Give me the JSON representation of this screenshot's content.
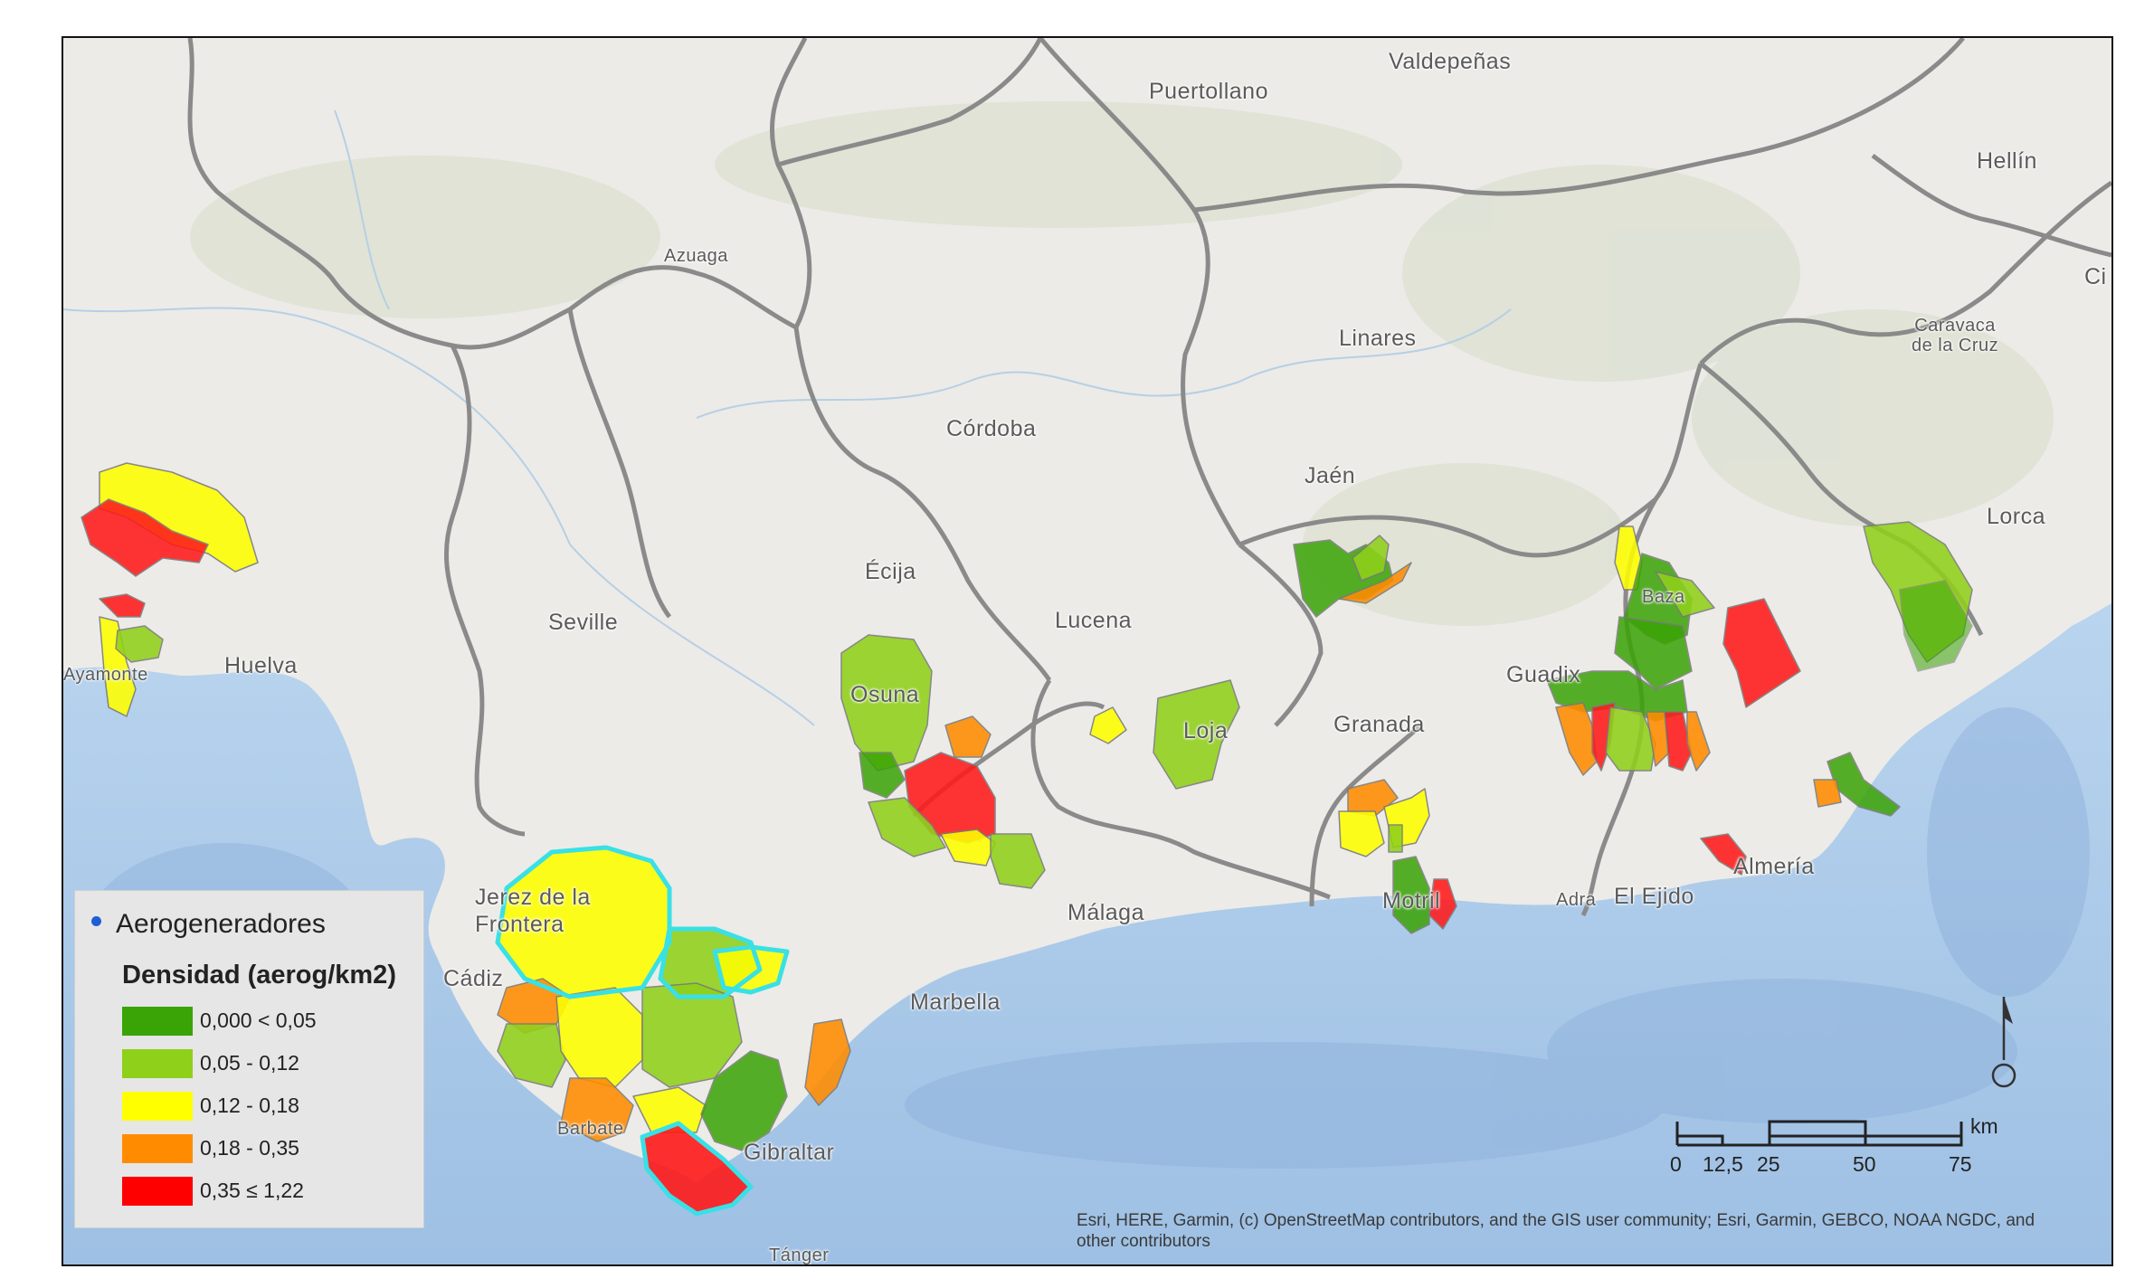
{
  "places": [
    {
      "name": "Valdepeñas",
      "cls": "city"
    },
    {
      "name": "Puertollano",
      "cls": "city"
    },
    {
      "name": "Hellín",
      "cls": "city"
    },
    {
      "name": "Azuaga",
      "cls": "small"
    },
    {
      "name": "Linares",
      "cls": "city"
    },
    {
      "name": "Caravaca\nde la Cruz",
      "cls": "small"
    },
    {
      "name": "Córdoba",
      "cls": "city"
    },
    {
      "name": "Jaén",
      "cls": "city"
    },
    {
      "name": "Lorca",
      "cls": "city"
    },
    {
      "name": "Écija",
      "cls": "city"
    },
    {
      "name": "Seville",
      "cls": "city"
    },
    {
      "name": "Lucena",
      "cls": "city"
    },
    {
      "name": "Huelva",
      "cls": "city"
    },
    {
      "name": "Ayamonte",
      "cls": "small"
    },
    {
      "name": "Baza",
      "cls": "small"
    },
    {
      "name": "Guadix",
      "cls": "city"
    },
    {
      "name": "Osuna",
      "cls": "city"
    },
    {
      "name": "Loja",
      "cls": "city"
    },
    {
      "name": "Granada",
      "cls": "city"
    },
    {
      "name": "Jerez de la\nFrontera",
      "cls": "city"
    },
    {
      "name": "Málaga",
      "cls": "city"
    },
    {
      "name": "Motril",
      "cls": "city"
    },
    {
      "name": "Adra",
      "cls": "small"
    },
    {
      "name": "El Ejido",
      "cls": "city"
    },
    {
      "name": "Almería",
      "cls": "city"
    },
    {
      "name": "Cádiz",
      "cls": "city"
    },
    {
      "name": "Marbella",
      "cls": "city"
    },
    {
      "name": "Barbate",
      "cls": "small"
    },
    {
      "name": "Gibraltar",
      "cls": "city"
    },
    {
      "name": "Tánger",
      "cls": "small"
    },
    {
      "name": "Ci",
      "cls": "city"
    }
  ],
  "legend": {
    "points_label": "Aerogeneradores",
    "points_color": "#1f5fd6",
    "density_title": "Densidad (aerog/km2)",
    "classes": [
      {
        "label": "0,000  < 0,05",
        "color": "#3aa305"
      },
      {
        "label": "0,05 - 0,12",
        "color": "#8fd01a"
      },
      {
        "label": "0,12 - 0,18",
        "color": "#ffff00"
      },
      {
        "label": "0,18 - 0,35",
        "color": "#ff8c00"
      },
      {
        "label": "0,35 ≤ 1,22",
        "color": "#ff0000"
      }
    ]
  },
  "scalebar": {
    "unit": "km",
    "ticks": [
      "0",
      "12,5",
      "25",
      "50",
      "75"
    ]
  },
  "attribution": "Esri, HERE, Garmin, (c) OpenStreetMap contributors, and the GIS user community; Esri, Garmin, GEBCO, NOAA NGDC, and other contributors",
  "colors": {
    "land": "#ecebe7",
    "sea": "#a9c8e8",
    "border": "#8a8a8a",
    "highlight": "#39e0e6"
  }
}
